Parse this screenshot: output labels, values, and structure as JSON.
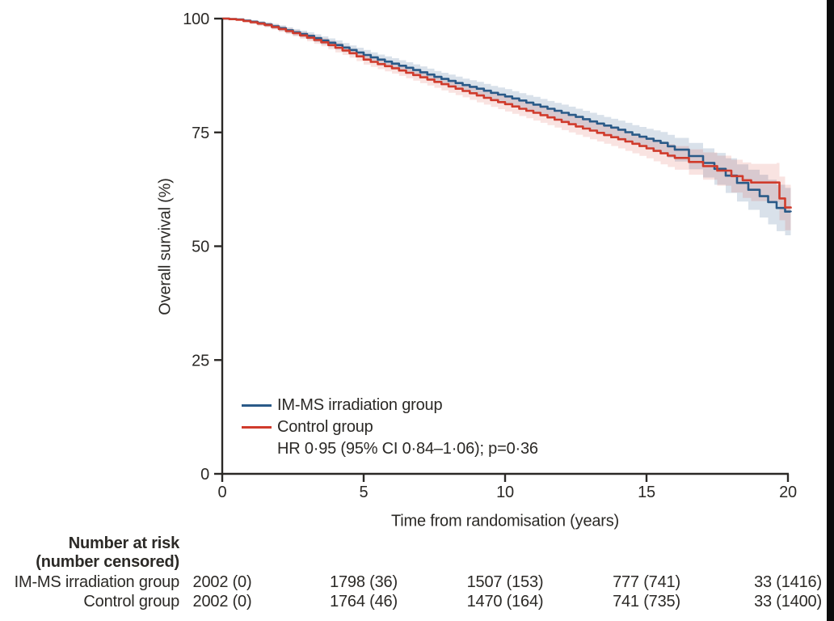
{
  "chart_data": {
    "type": "line",
    "subtype": "kaplan-meier-step",
    "title": "",
    "xlabel": "Time from randomisation (years)",
    "ylabel": "Overall survival (%)",
    "xlim": [
      0,
      20
    ],
    "ylim": [
      0,
      100
    ],
    "xticks": [
      0,
      5,
      10,
      15,
      20
    ],
    "yticks": [
      0,
      25,
      50,
      75,
      100
    ],
    "grid": false,
    "legend_position": "inside-lower-left",
    "annotation": "HR 0·95 (95% CI 0·84–1·06); p=0·36",
    "axis_color": "#2b2926",
    "series": [
      {
        "name": "IM-MS irradiation group",
        "color": "#2a5a88",
        "band_color": "rgba(42,90,136,0.18)",
        "points_format": "[years, survival_pct, ci_halfwidth_pct]",
        "points": [
          [
            0,
            100,
            0
          ],
          [
            0.5,
            99.8,
            0.2
          ],
          [
            1,
            99.3,
            0.4
          ],
          [
            1.5,
            98.7,
            0.5
          ],
          [
            2,
            97.9,
            0.6
          ],
          [
            2.5,
            97.0,
            0.7
          ],
          [
            3,
            96.2,
            0.8
          ],
          [
            3.5,
            95.2,
            0.9
          ],
          [
            4,
            94.2,
            1.0
          ],
          [
            4.5,
            93.1,
            1.0
          ],
          [
            5,
            92.0,
            1.1
          ],
          [
            5.5,
            91.0,
            1.1
          ],
          [
            6,
            90.1,
            1.2
          ],
          [
            6.5,
            89.2,
            1.2
          ],
          [
            7,
            88.2,
            1.3
          ],
          [
            7.5,
            87.2,
            1.3
          ],
          [
            8,
            86.3,
            1.4
          ],
          [
            8.5,
            85.4,
            1.4
          ],
          [
            9,
            84.6,
            1.5
          ],
          [
            9.5,
            83.7,
            1.5
          ],
          [
            10,
            82.9,
            1.6
          ],
          [
            10.5,
            82.0,
            1.6
          ],
          [
            11,
            81.1,
            1.7
          ],
          [
            11.5,
            80.2,
            1.7
          ],
          [
            12,
            79.3,
            1.8
          ],
          [
            12.5,
            78.4,
            1.8
          ],
          [
            13,
            77.4,
            1.9
          ],
          [
            13.5,
            76.5,
            1.9
          ],
          [
            14,
            75.6,
            2.0
          ],
          [
            14.5,
            74.5,
            2.1
          ],
          [
            15,
            73.6,
            2.2
          ],
          [
            15.5,
            72.7,
            2.4
          ],
          [
            16,
            71.2,
            2.6
          ],
          [
            16.5,
            69.8,
            2.9
          ],
          [
            17,
            68.3,
            3.2
          ],
          [
            17.4,
            67.0,
            3.5
          ],
          [
            17.8,
            65.5,
            3.8
          ],
          [
            18.2,
            63.9,
            4.1
          ],
          [
            18.6,
            62.4,
            4.4
          ],
          [
            19,
            61.0,
            4.7
          ],
          [
            19.3,
            59.7,
            4.9
          ],
          [
            19.6,
            58.4,
            5.1
          ],
          [
            19.9,
            57.6,
            5.2
          ],
          [
            20.1,
            57.5,
            5.2
          ]
        ]
      },
      {
        "name": "Control group",
        "color": "#d03b2c",
        "band_color": "rgba(212,67,51,0.15)",
        "points_format": "[years, survival_pct, ci_halfwidth_pct]",
        "points": [
          [
            0,
            100,
            0
          ],
          [
            0.5,
            99.75,
            0.2
          ],
          [
            1,
            99.2,
            0.4
          ],
          [
            1.5,
            98.6,
            0.5
          ],
          [
            2,
            97.7,
            0.6
          ],
          [
            2.5,
            96.8,
            0.7
          ],
          [
            3,
            95.8,
            0.8
          ],
          [
            3.5,
            94.8,
            0.9
          ],
          [
            4,
            93.6,
            1.0
          ],
          [
            4.5,
            92.4,
            1.0
          ],
          [
            5,
            91.0,
            1.1
          ],
          [
            5.5,
            90.0,
            1.1
          ],
          [
            6,
            89.1,
            1.2
          ],
          [
            6.5,
            88.1,
            1.2
          ],
          [
            7,
            87.1,
            1.3
          ],
          [
            7.5,
            86.1,
            1.3
          ],
          [
            8,
            85.1,
            1.4
          ],
          [
            8.5,
            84.1,
            1.4
          ],
          [
            9,
            83.1,
            1.5
          ],
          [
            9.5,
            82.1,
            1.5
          ],
          [
            10,
            81.2,
            1.6
          ],
          [
            10.5,
            80.2,
            1.6
          ],
          [
            11,
            79.3,
            1.7
          ],
          [
            11.5,
            78.3,
            1.7
          ],
          [
            12,
            77.3,
            1.8
          ],
          [
            12.5,
            76.3,
            1.8
          ],
          [
            13,
            75.4,
            1.9
          ],
          [
            13.5,
            74.4,
            1.9
          ],
          [
            14,
            73.5,
            2.0
          ],
          [
            14.5,
            72.5,
            2.1
          ],
          [
            15,
            71.5,
            2.2
          ],
          [
            15.5,
            70.4,
            2.4
          ],
          [
            16,
            69.4,
            2.6
          ],
          [
            16.5,
            68.5,
            2.8
          ],
          [
            17,
            67.6,
            3.0
          ],
          [
            17.5,
            66.6,
            3.3
          ],
          [
            18,
            65.4,
            3.6
          ],
          [
            18.4,
            64.5,
            3.9
          ],
          [
            18.7,
            64.0,
            4.1
          ],
          [
            19.6,
            64.0,
            4.3
          ],
          [
            19.7,
            60.5,
            4.8
          ],
          [
            19.9,
            58.5,
            5.0
          ],
          [
            20.1,
            58.3,
            5.0
          ]
        ]
      }
    ]
  },
  "risk_table": {
    "header_line1": "Number at risk",
    "header_line2": "(number censored)",
    "rows": [
      {
        "label": "IM-MS irradiation group",
        "values": [
          "2002 (0)",
          "1798 (36)",
          "1507 (153)",
          "777 (741)",
          "33 (1416)"
        ]
      },
      {
        "label": "Control group",
        "values": [
          "2002 (0)",
          "1764 (46)",
          "1470 (164)",
          "741 (735)",
          "33 (1400)"
        ]
      }
    ]
  }
}
